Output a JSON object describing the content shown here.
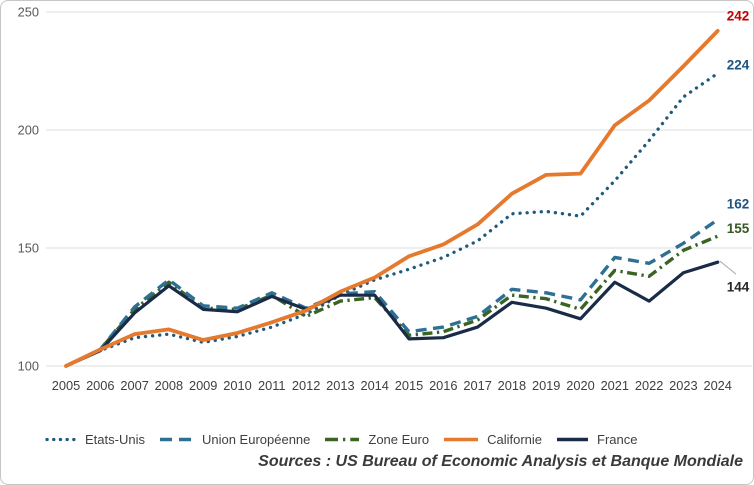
{
  "chart_data": {
    "type": "line",
    "title": "",
    "x_labels": [
      "2005",
      "2006",
      "2007",
      "2008",
      "2009",
      "2010",
      "2011",
      "2012",
      "2013",
      "2014",
      "2015",
      "2016",
      "2017",
      "2018",
      "2019",
      "2020",
      "2021",
      "2022",
      "2023",
      "2024"
    ],
    "ylim": [
      100,
      250
    ],
    "yticks": [
      100,
      150,
      200,
      250
    ],
    "grid": true,
    "legend_position": "bottom-left",
    "series": [
      {
        "name": "Etats-Unis",
        "style": "dotted",
        "color": "#1f5a7d",
        "end_label": "224",
        "end_label_color": "#1f5380",
        "values": [
          100,
          106.5,
          112,
          113.5,
          110,
          112.5,
          116.5,
          122,
          130,
          136.5,
          141,
          146,
          153,
          164.5,
          165.5,
          163.5,
          178.5,
          195.5,
          214,
          224
        ]
      },
      {
        "name": "Union Européenne",
        "style": "dashed",
        "color": "#2e7094",
        "end_label": "162",
        "end_label_color": "#1f5380",
        "values": [
          100,
          107,
          125,
          136.5,
          125.5,
          124.5,
          131,
          124.5,
          130.5,
          131.5,
          114.5,
          116.5,
          121,
          132.5,
          131,
          128,
          146,
          143.5,
          152,
          162
        ]
      },
      {
        "name": "Zone Euro",
        "style": "dashdot",
        "color": "#3a6324",
        "end_label": "155",
        "end_label_color": "#375623",
        "values": [
          100,
          107,
          124,
          135.5,
          124.5,
          124,
          130,
          121,
          127.5,
          129,
          113,
          114.5,
          119.5,
          130,
          128.5,
          124,
          140.5,
          138,
          149,
          155
        ]
      },
      {
        "name": "Californie",
        "style": "solid",
        "color": "#e5792e",
        "end_label": "242",
        "end_label_color": "#c00000",
        "values": [
          100,
          107,
          113.5,
          115.5,
          111,
          114,
          118.5,
          123.5,
          131.5,
          137.5,
          146.5,
          151.5,
          160,
          173,
          181,
          181.5,
          202,
          212.5,
          227,
          242
        ]
      },
      {
        "name": "France",
        "style": "solid",
        "color": "#1a2b47",
        "end_label": "144",
        "end_label_color": "#262626",
        "values": [
          100,
          106.5,
          122.5,
          134,
          124,
          123,
          129.5,
          124,
          130,
          130,
          111.5,
          112,
          116.5,
          127,
          124.5,
          120,
          135.5,
          127.5,
          139.5,
          144
        ]
      }
    ]
  },
  "axis_text": {
    "ytick_labels": [
      "100",
      "150",
      "200",
      "250"
    ]
  },
  "source_note": "Sources : US Bureau of Economic Analysis et Banque Mondiale"
}
